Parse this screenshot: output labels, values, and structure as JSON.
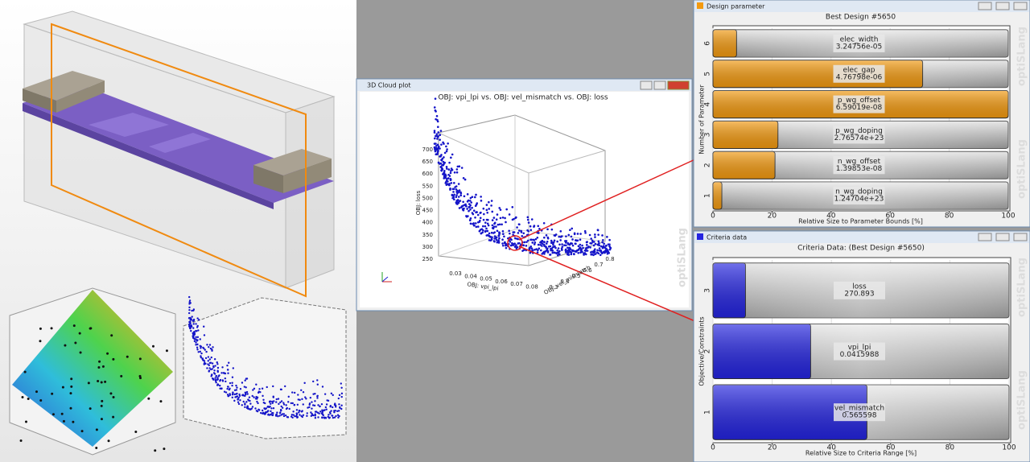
{
  "watermark": "optiSLang",
  "cloud_plot": {
    "window_title": "3D Cloud plot",
    "title": "OBJ: vpi_lpi vs. OBJ: vel_mismatch vs. OBJ: loss",
    "x_label": "OBJ: vpi_lpi",
    "y_label": "OBJ: vel_mismatch",
    "z_label": "OBJ: loss",
    "xticks": [
      "0.03",
      "0.04",
      "0.05",
      "0.06",
      "0.07",
      "0.08"
    ],
    "yticks": [
      "0.3",
      "0.4",
      "0.5",
      "0.6",
      "0.7",
      "0.8"
    ],
    "zticks": [
      "250",
      "300",
      "350",
      "400",
      "450",
      "500",
      "550",
      "600",
      "650",
      "700"
    ]
  },
  "chart_data": [
    {
      "type": "barh",
      "window_title": "Design parameter",
      "title": "Best Design #5650",
      "x_label": "Relative Size to Parameter Bounds [%]",
      "y_label": "Number of Parameter",
      "categories": [
        "1",
        "2",
        "3",
        "4",
        "5",
        "6"
      ],
      "values": [
        3,
        21,
        22,
        100,
        71,
        8
      ],
      "names": [
        "n_wg_doping",
        "n_wg_offset",
        "p_wg_doping",
        "p_wg_offset",
        "elec_gap",
        "elec_width"
      ],
      "value_texts": [
        "1.24704e+23",
        "1.39853e-08",
        "2.76574e+23",
        "6.59019e-08",
        "4.76798e-06",
        "3.24756e-05"
      ],
      "color": "#f39a10",
      "xlim": [
        0,
        100
      ],
      "xticks": [
        0,
        20,
        40,
        60,
        80,
        100
      ],
      "grid": true
    },
    {
      "type": "barh",
      "window_title": "Criteria data",
      "title": "Criteria Data: (Best Design #5650)",
      "x_label": "Relative Size to Criteria Range [%]",
      "y_label": "Objective/Constraints",
      "categories": [
        "1",
        "2",
        "3"
      ],
      "values": [
        52,
        33,
        11
      ],
      "names": [
        "vel_mismatch",
        "vpi_lpi",
        "loss"
      ],
      "value_texts": [
        "0.565598",
        "0.0415988",
        "270.893"
      ],
      "color": "#2424e0",
      "xlim": [
        0,
        100
      ],
      "xticks": [
        0,
        20,
        40,
        60,
        80,
        100
      ],
      "grid": true
    }
  ]
}
